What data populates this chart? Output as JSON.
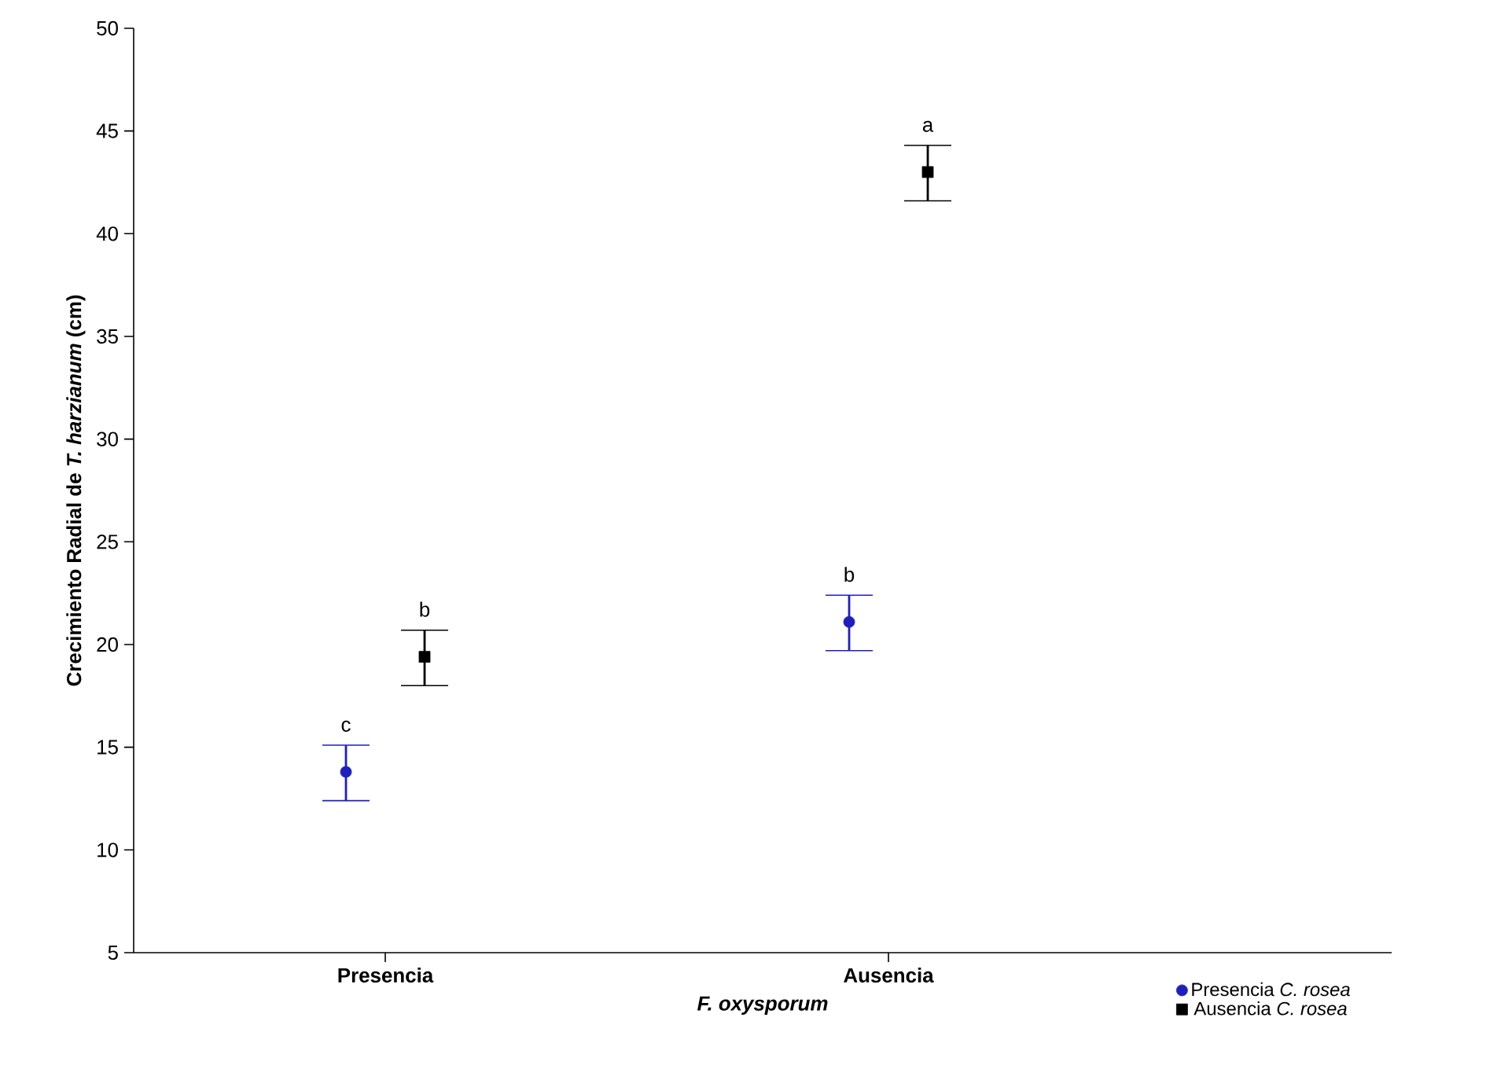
{
  "chart_data": {
    "type": "scatter",
    "xlabel": "F. oxysporum",
    "ylabel": "Crecimiento Radial de *T. harzianum* (cm)",
    "categories": [
      "Presencia",
      "Ausencia"
    ],
    "series": [
      {
        "name": "Presencia *C. rosea*",
        "color": "#1f1fbf",
        "marker": "circle",
        "values": [
          13.8,
          21.1
        ],
        "errors": [
          [
            12.4,
            15.1
          ],
          [
            19.7,
            22.4
          ]
        ]
      },
      {
        "name": "Ausencia *C. rosea*",
        "color": "#000000",
        "marker": "square",
        "values": [
          19.4,
          43.0
        ],
        "errors": [
          [
            18.0,
            20.7
          ],
          [
            41.6,
            44.3
          ]
        ]
      }
    ],
    "annotations": [
      "c",
      "b",
      "b",
      "a"
    ],
    "ylim": [
      5,
      50
    ],
    "yticks": [
      5,
      10,
      15,
      20,
      25,
      30,
      35,
      40,
      45,
      50
    ],
    "grid": false,
    "legend": "bottom right"
  }
}
